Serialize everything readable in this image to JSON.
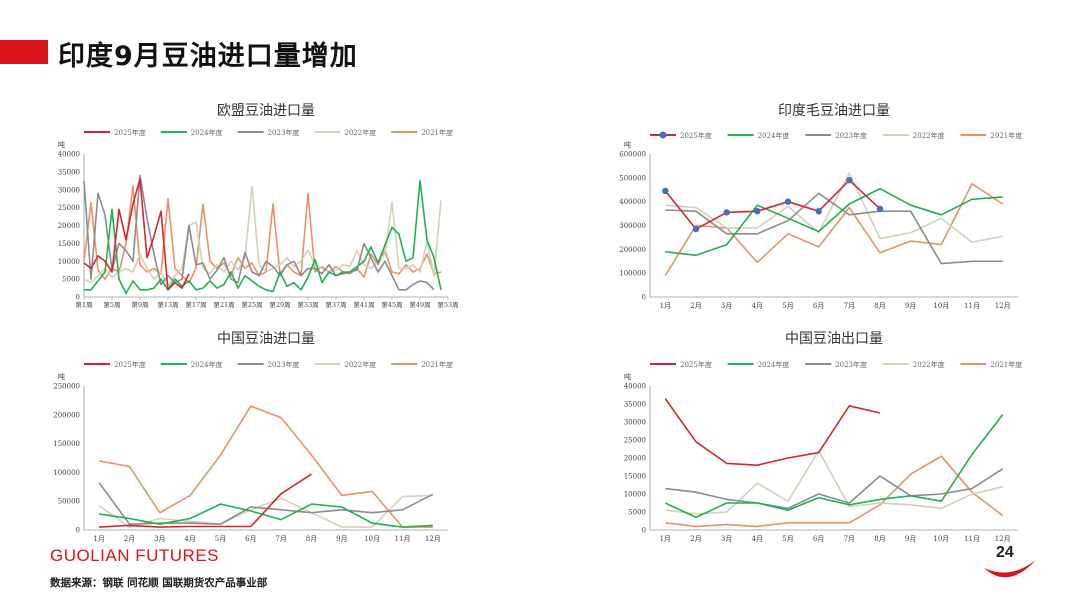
{
  "page": {
    "title": "印度9月豆油进口量增加",
    "brand": "GUOLIAN FUTURES",
    "source": "数据来源：钢联  同花顺  国联期货农产品事业部",
    "page_number": "24"
  },
  "colors": {
    "2025年度": "#d9252f",
    "2024年度": "#1fb14e",
    "2023年度": "#8c8c8c",
    "2022年度": "#d3d1b8",
    "2021年度": "#ee8f66",
    "marker": "#3f6fc7",
    "brand": "#d9141c"
  },
  "chart_data": [
    {
      "type": "line",
      "title": "欧盟豆油进口量",
      "ylabel": "吨",
      "ylim": [
        0,
        40000
      ],
      "yticks": [
        0,
        5000,
        10000,
        15000,
        20000,
        25000,
        30000,
        35000,
        40000
      ],
      "xlabels": [
        "第1周",
        "第5周",
        "第9周",
        "第13周",
        "第17周",
        "第21周",
        "第25周",
        "第29周",
        "第33周",
        "第37周",
        "第41周",
        "第45周",
        "第49周",
        "第53周"
      ],
      "xcount": 53,
      "series": [
        {
          "name": "2025年度",
          "values": [
            9500,
            8000,
            11500,
            10000,
            7000,
            24500,
            16000,
            26000,
            33000,
            11000,
            17000,
            24000,
            2000,
            4000,
            2500,
            6500
          ]
        },
        {
          "name": "2024年度",
          "values": [
            2000,
            2000,
            4500,
            7000,
            24500,
            5000,
            1000,
            4500,
            2000,
            2000,
            2500,
            5000,
            2000,
            5000,
            3000,
            4500,
            2000,
            2500,
            4500,
            2500,
            3500,
            7000,
            2500,
            6000,
            4500,
            3000,
            2000,
            1500,
            7000,
            3000,
            4000,
            2000,
            5500,
            10500,
            4000,
            7000,
            6000,
            7000,
            7000,
            8500,
            10000,
            14000,
            9500,
            14500,
            19500,
            17500,
            10000,
            11000,
            32500,
            16000,
            11000,
            2000
          ]
        },
        {
          "name": "2023年度",
          "values": [
            32500,
            5000,
            29000,
            23000,
            7500,
            15000,
            13000,
            10000,
            34000,
            22000,
            12000,
            3500,
            6000,
            4000,
            5000,
            20000,
            9000,
            9500,
            5000,
            7500,
            11000,
            5000,
            4000,
            12500,
            7000,
            6000,
            10000,
            8500,
            6000,
            9000,
            10000,
            6000,
            8000,
            8000,
            6500,
            9000,
            6000,
            6500,
            7000,
            7500,
            15000,
            11000,
            7000,
            10000,
            6000,
            2000,
            2000,
            3500,
            4500,
            4000,
            2000
          ]
        },
        {
          "name": "2022年度",
          "values": [
            5000,
            4000,
            6000,
            8000,
            5500,
            7000,
            8000,
            7000,
            12000,
            8000,
            5000,
            7000,
            3000,
            6000,
            8000,
            20000,
            21000,
            8000,
            6500,
            9000,
            7000,
            10000,
            7500,
            11000,
            31000,
            9000,
            7000,
            8000,
            9000,
            11000,
            8500,
            10000,
            13000,
            9000,
            8000,
            7000,
            7500,
            9000,
            8500,
            13000,
            9000,
            8000,
            10000,
            12000,
            26500,
            8000,
            8000,
            9000,
            7000,
            15500,
            6000,
            27000
          ]
        },
        {
          "name": "2021年度",
          "values": [
            10000,
            26500,
            7500,
            5000,
            8000,
            7000,
            15000,
            31000,
            9000,
            7000,
            8000,
            6500,
            27500,
            8000,
            6000,
            4000,
            8000,
            26000,
            10000,
            8000,
            9500,
            6000,
            11000,
            8000,
            9500,
            6000,
            7000,
            26000,
            6500,
            9000,
            7000,
            6000,
            29000,
            7000,
            8500,
            7000,
            8500,
            7000,
            6500,
            8000,
            5500,
            12000,
            9000,
            13000,
            7000,
            6500,
            9000,
            7000,
            8000,
            12000,
            6500,
            7000
          ]
        }
      ]
    },
    {
      "type": "line",
      "title": "印度毛豆油进口量",
      "ylabel": "吨",
      "ylim": [
        0,
        600000
      ],
      "yticks": [
        0,
        100000,
        200000,
        300000,
        400000,
        500000,
        600000
      ],
      "xlabels": [
        "1月",
        "2月",
        "3月",
        "4月",
        "5月",
        "6月",
        "7月",
        "8月",
        "9月",
        "10月",
        "11月",
        "12月"
      ],
      "xcount": 12,
      "markers_for": "2025年度",
      "series": [
        {
          "name": "2025年度",
          "values": [
            445000,
            285000,
            355000,
            360000,
            400000,
            360000,
            490000,
            370000
          ]
        },
        {
          "name": "2024年度",
          "values": [
            190000,
            175000,
            220000,
            385000,
            330000,
            275000,
            390000,
            455000,
            385000,
            345000,
            410000,
            420000
          ]
        },
        {
          "name": "2023年度",
          "values": [
            365000,
            360000,
            265000,
            265000,
            320000,
            435000,
            345000,
            360000,
            360000,
            140000,
            150000,
            150000
          ]
        },
        {
          "name": "2022年度",
          "values": [
            385000,
            375000,
            290000,
            290000,
            380000,
            270000,
            520000,
            245000,
            270000,
            330000,
            230000,
            255000
          ]
        },
        {
          "name": "2021年度",
          "values": [
            90000,
            300000,
            290000,
            145000,
            265000,
            210000,
            375000,
            185000,
            235000,
            220000,
            475000,
            390000
          ]
        }
      ]
    },
    {
      "type": "line",
      "title": "中国豆油进口量",
      "ylabel": "吨",
      "ylim": [
        0,
        250000
      ],
      "yticks": [
        0,
        50000,
        100000,
        150000,
        200000,
        250000
      ],
      "xlabels": [
        "1月",
        "2月",
        "3月",
        "4月",
        "5月",
        "6月",
        "7月",
        "8月",
        "9月",
        "10月",
        "11月",
        "12月"
      ],
      "xcount": 12,
      "series": [
        {
          "name": "2025年度",
          "values": [
            5000,
            8000,
            5000,
            6000,
            6000,
            6000,
            63000,
            97000
          ]
        },
        {
          "name": "2024年度",
          "values": [
            28000,
            20000,
            10000,
            20000,
            45000,
            33000,
            18000,
            45000,
            40000,
            12000,
            5000,
            8000
          ]
        },
        {
          "name": "2023年度",
          "values": [
            82000,
            10000,
            12000,
            12000,
            10000,
            40000,
            35000,
            30000,
            35000,
            30000,
            35000,
            62000
          ]
        },
        {
          "name": "2022年度",
          "values": [
            42000,
            5000,
            20000,
            15000,
            10000,
            35000,
            55000,
            30000,
            5000,
            5000,
            58000,
            60000
          ]
        },
        {
          "name": "2021年度",
          "values": [
            120000,
            110000,
            30000,
            60000,
            130000,
            215000,
            195000,
            130000,
            60000,
            67000,
            5000,
            5000
          ]
        }
      ]
    },
    {
      "type": "line",
      "title": "中国豆油出口量",
      "ylabel": "吨",
      "ylim": [
        0,
        40000
      ],
      "yticks": [
        0,
        5000,
        10000,
        15000,
        20000,
        25000,
        30000,
        35000,
        40000
      ],
      "xlabels": [
        "1月",
        "2月",
        "3月",
        "4月",
        "5月",
        "6月",
        "7月",
        "8月",
        "9月",
        "10月",
        "11月",
        "12月"
      ],
      "xcount": 12,
      "series": [
        {
          "name": "2025年度",
          "values": [
            36500,
            24500,
            18500,
            18000,
            20000,
            21500,
            34500,
            32500
          ]
        },
        {
          "name": "2024年度",
          "values": [
            7500,
            3500,
            7500,
            7500,
            5500,
            9000,
            7000,
            8500,
            9500,
            8000,
            21000,
            32000
          ]
        },
        {
          "name": "2023年度",
          "values": [
            11500,
            10500,
            8500,
            7500,
            6000,
            10000,
            7500,
            15000,
            9500,
            10000,
            11500,
            17000
          ]
        },
        {
          "name": "2022年度",
          "values": [
            5500,
            4500,
            5000,
            13000,
            8000,
            22000,
            6500,
            7500,
            7000,
            6000,
            10000,
            12000
          ]
        },
        {
          "name": "2021年度",
          "values": [
            2000,
            1000,
            1500,
            1000,
            2000,
            2000,
            2000,
            7000,
            15500,
            20500,
            10500,
            4000
          ]
        }
      ]
    }
  ]
}
